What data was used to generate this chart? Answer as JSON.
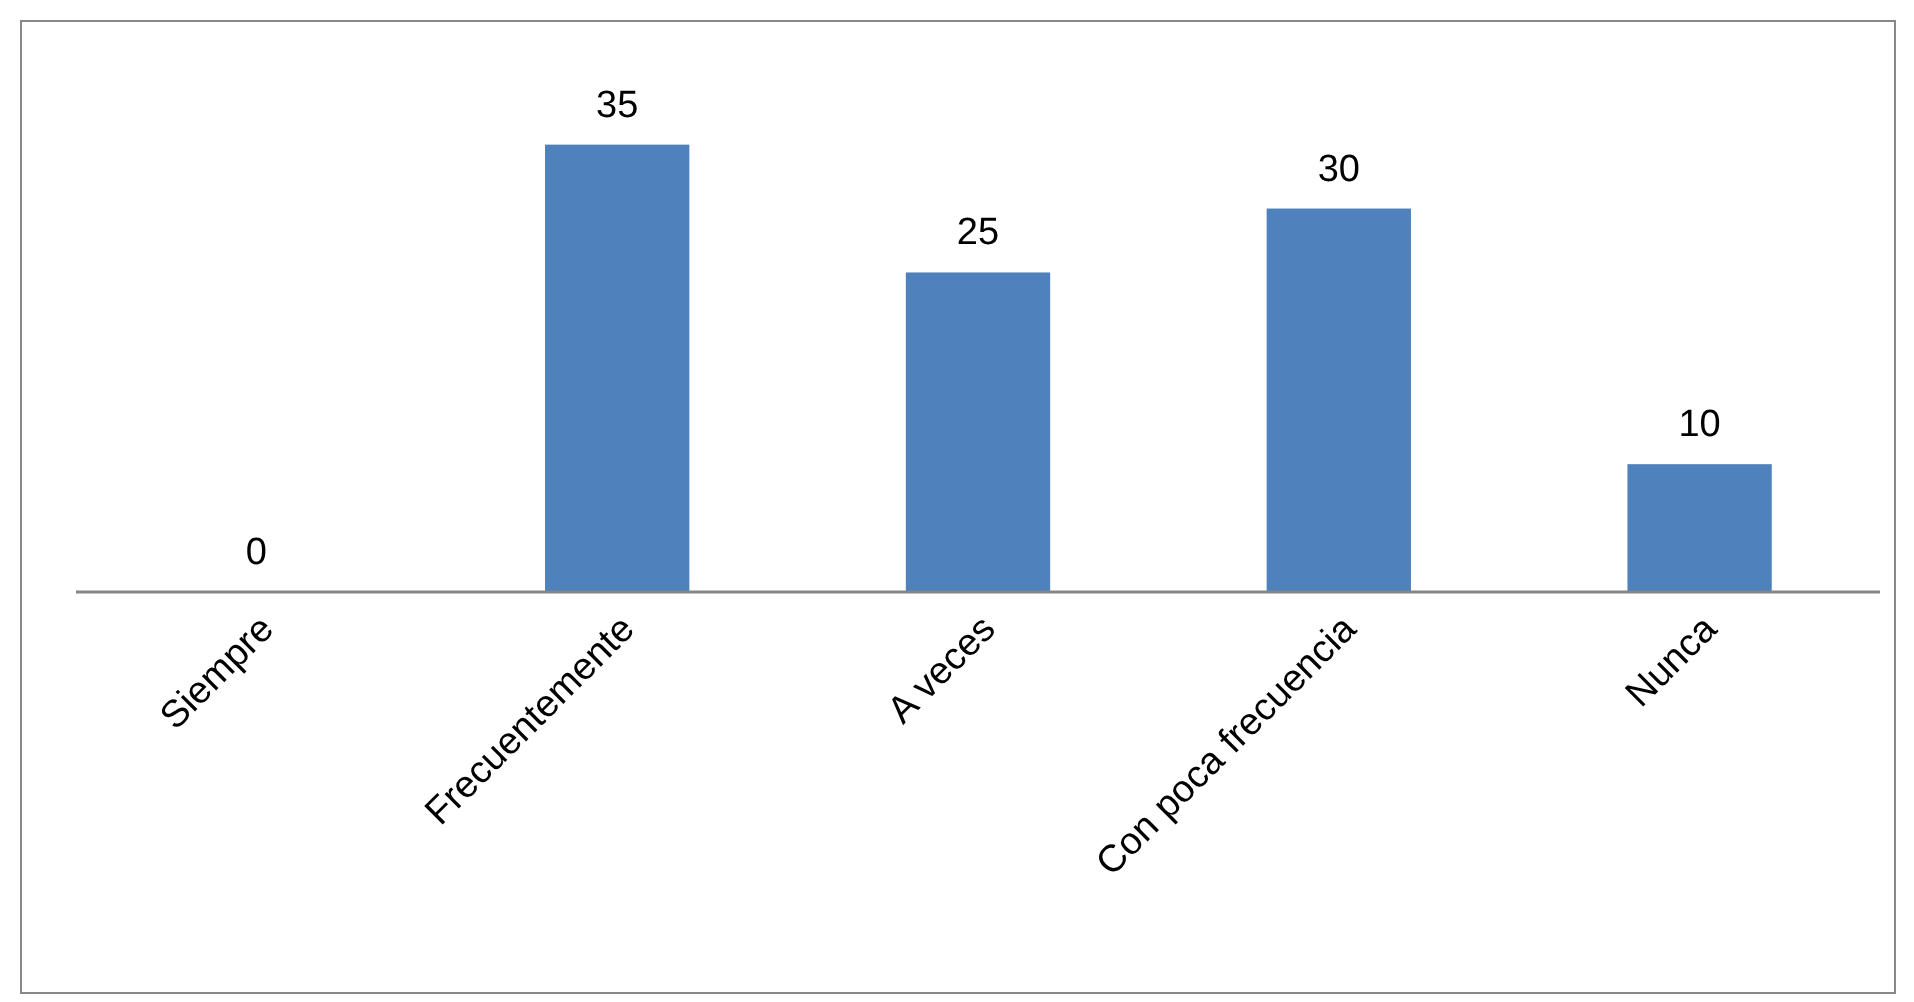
{
  "chart_data": {
    "type": "bar",
    "categories": [
      "Siempre",
      "Frecuentemente",
      "A veces",
      "Con poca frecuencia",
      "Nunca"
    ],
    "values": [
      0,
      35,
      25,
      30,
      10
    ],
    "color": "#4f81bd",
    "data_labels": true
  }
}
